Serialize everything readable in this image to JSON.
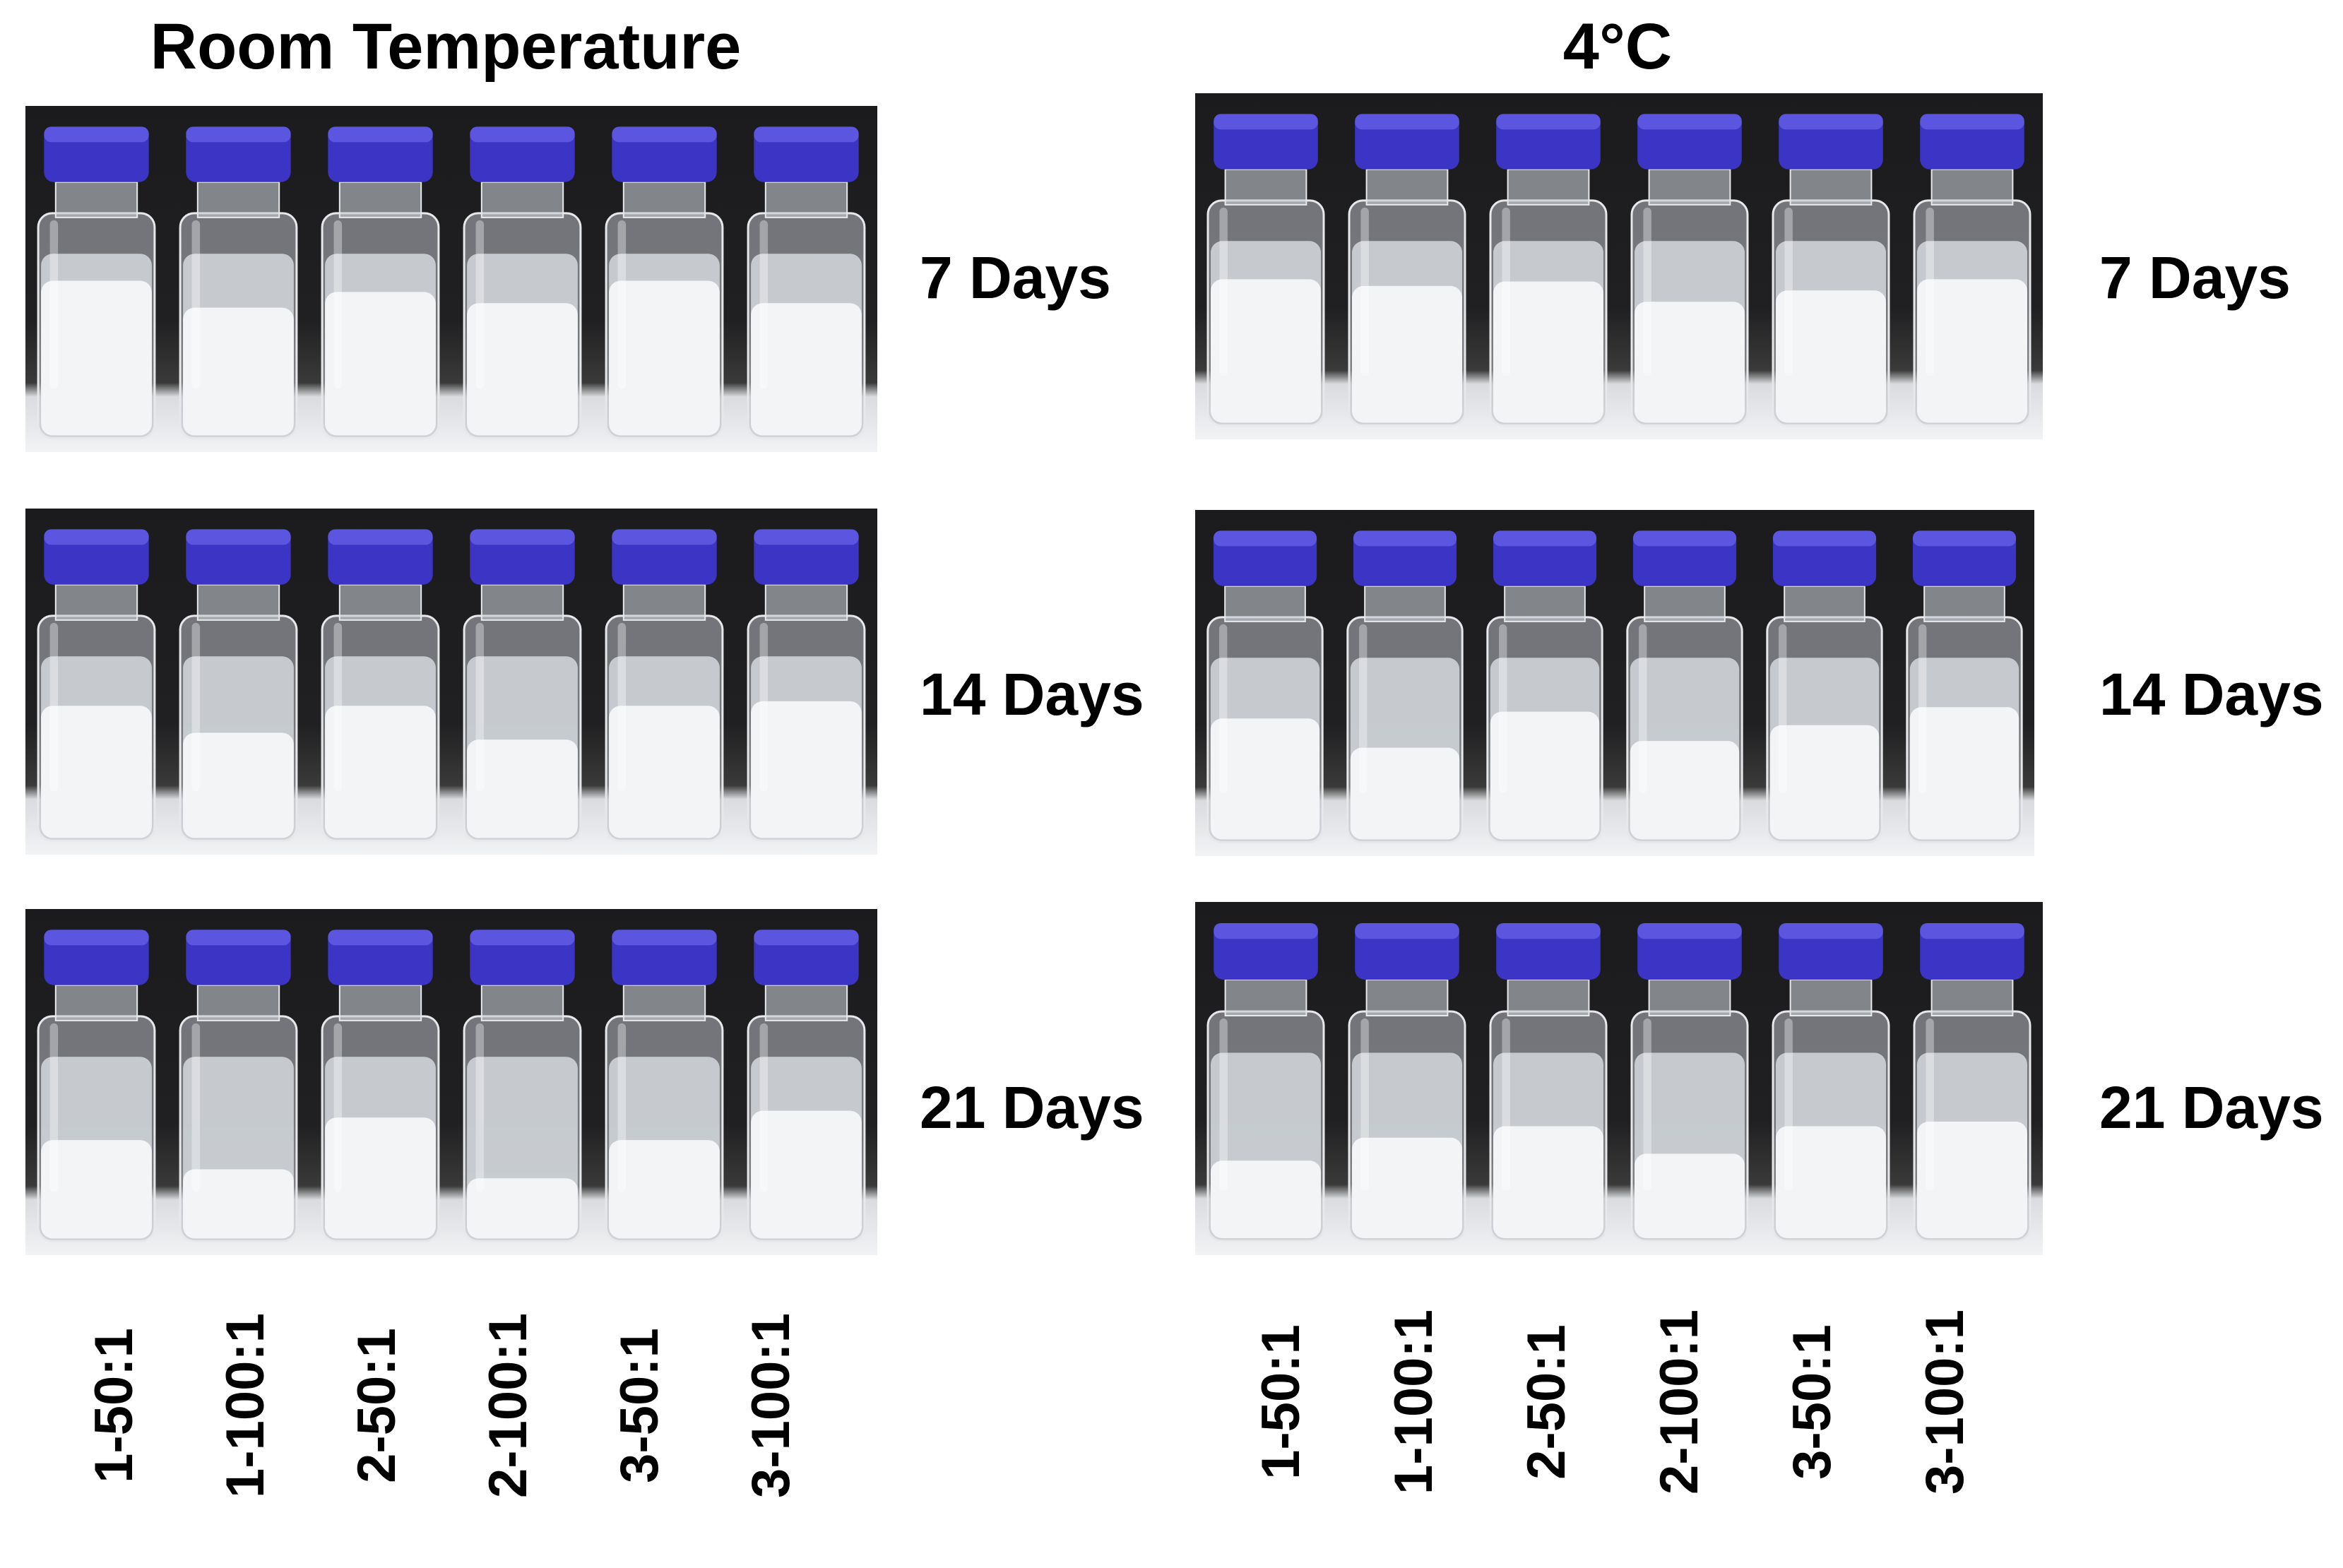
{
  "columns": [
    {
      "title": "Room Temperature"
    },
    {
      "title": "4°C"
    }
  ],
  "rows": [
    {
      "label": "7 Days"
    },
    {
      "label": "14 Days"
    },
    {
      "label": "21 Days"
    }
  ],
  "samples": [
    "1-50:1",
    "1-100:1",
    "2-50:1",
    "2-100:1",
    "3-50:1",
    "3-100:1"
  ],
  "colors": {
    "cap": "#3b34c4",
    "background": "#1e1e20",
    "emulsion": "#f3f4f6",
    "clear_layer": "#cfd4d8"
  }
}
